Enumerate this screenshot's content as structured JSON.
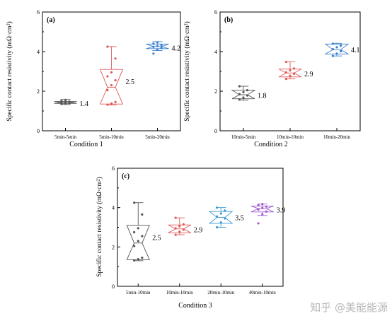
{
  "chart_data": [
    {
      "type": "box",
      "panel_label": "(a)",
      "title": "",
      "xlabel": "Condition 1",
      "ylabel": "Specific contact resistivity (mΩ·cm²)",
      "ylim": [
        0,
        6
      ],
      "yticks": [
        "0",
        "2",
        "4",
        "6"
      ],
      "grid": false,
      "categories": [
        "5min-5min",
        "5min-10min",
        "5min-20min"
      ],
      "series": [
        {
          "category": "5min-5min",
          "color": "#555555",
          "mean_label": "1.4",
          "q1": 1.38,
          "median": 1.42,
          "q3": 1.48,
          "whisker_low": 1.33,
          "whisker_high": 1.58,
          "points": [
            1.36,
            1.39,
            1.41,
            1.43,
            1.45,
            1.47,
            1.5,
            1.56
          ]
        },
        {
          "category": "5min-10min",
          "color": "#e05a5a",
          "mean_label": "2.5",
          "q1": 1.35,
          "median": 2.2,
          "q3": 3.1,
          "whisker_low": 1.3,
          "whisker_high": 4.25,
          "points": [
            1.32,
            1.38,
            1.45,
            2.05,
            2.3,
            2.55,
            2.75,
            2.95,
            3.65,
            4.25
          ]
        },
        {
          "category": "5min-20min",
          "color": "#3a7fd0",
          "mean_label": "4.2",
          "q1": 4.15,
          "median": 4.25,
          "q3": 4.38,
          "whisker_low": 4.05,
          "whisker_high": 4.5,
          "points": [
            3.9,
            4.1,
            4.18,
            4.24,
            4.28,
            4.33,
            4.4,
            4.47
          ]
        }
      ]
    },
    {
      "type": "box",
      "panel_label": "(b)",
      "title": "",
      "xlabel": "Condition 2",
      "ylabel": "Specific contact resistivity (mΩ·cm²)",
      "ylim": [
        0,
        6
      ],
      "yticks": [
        "0",
        "2",
        "4",
        "6"
      ],
      "grid": false,
      "categories": [
        "10min-5min",
        "10min-10min",
        "10min-20min"
      ],
      "series": [
        {
          "category": "10min-5min",
          "color": "#555555",
          "mean_label": "1.8",
          "q1": 1.62,
          "median": 1.82,
          "q3": 2.05,
          "whisker_low": 1.55,
          "whisker_high": 2.25,
          "points": [
            1.58,
            1.68,
            1.78,
            1.85,
            1.95,
            2.05,
            2.25
          ]
        },
        {
          "category": "10min-10min",
          "color": "#e05a5a",
          "mean_label": "2.9",
          "q1": 2.72,
          "median": 2.92,
          "q3": 3.12,
          "whisker_low": 2.62,
          "whisker_high": 3.48,
          "points": [
            2.62,
            2.78,
            2.88,
            2.95,
            3.05,
            3.15,
            3.48
          ]
        },
        {
          "category": "10min-20min",
          "color": "#3a7fd0",
          "mean_label": "4.1",
          "q1": 3.88,
          "median": 4.1,
          "q3": 4.38,
          "whisker_low": 3.78,
          "whisker_high": 4.42,
          "points": [
            3.78,
            3.9,
            4.02,
            4.12,
            4.22,
            4.3,
            4.4
          ]
        }
      ]
    },
    {
      "type": "box",
      "panel_label": "(c)",
      "title": "",
      "xlabel": "Condition 3",
      "ylabel": "Specific contact resistivity (mΩ·cm²)",
      "ylim": [
        0,
        6
      ],
      "yticks": [
        "0",
        "2",
        "4",
        "6"
      ],
      "grid": false,
      "categories": [
        "5min-10min",
        "10min-10min",
        "20min-10min",
        "40min-10min"
      ],
      "series": [
        {
          "category": "5min-10min",
          "color": "#555555",
          "mean_label": "2.5",
          "q1": 1.35,
          "median": 2.2,
          "q3": 3.1,
          "whisker_low": 1.3,
          "whisker_high": 4.25,
          "points": [
            1.32,
            1.38,
            1.45,
            2.05,
            2.3,
            2.55,
            2.75,
            2.95,
            3.65,
            4.25
          ]
        },
        {
          "category": "10min-10min",
          "color": "#e05a5a",
          "mean_label": "2.9",
          "q1": 2.72,
          "median": 2.92,
          "q3": 3.12,
          "whisker_low": 2.62,
          "whisker_high": 3.48,
          "points": [
            2.62,
            2.78,
            2.88,
            2.95,
            3.05,
            3.15,
            3.48
          ]
        },
        {
          "category": "20min-10min",
          "color": "#3a9ad6",
          "mean_label": "3.5",
          "q1": 3.2,
          "median": 3.5,
          "q3": 3.8,
          "whisker_low": 3.0,
          "whisker_high": 4.0,
          "points": [
            3.0,
            3.25,
            3.45,
            3.55,
            3.7,
            3.85,
            4.0
          ]
        },
        {
          "category": "40min-10min",
          "color": "#a05ad0",
          "mean_label": "3.9",
          "q1": 3.78,
          "median": 3.95,
          "q3": 4.08,
          "whisker_low": 3.6,
          "whisker_high": 4.18,
          "points": [
            3.2,
            3.65,
            3.8,
            3.9,
            3.98,
            4.05,
            4.12,
            4.18
          ]
        }
      ]
    }
  ],
  "watermark": "知乎 @美能能源"
}
